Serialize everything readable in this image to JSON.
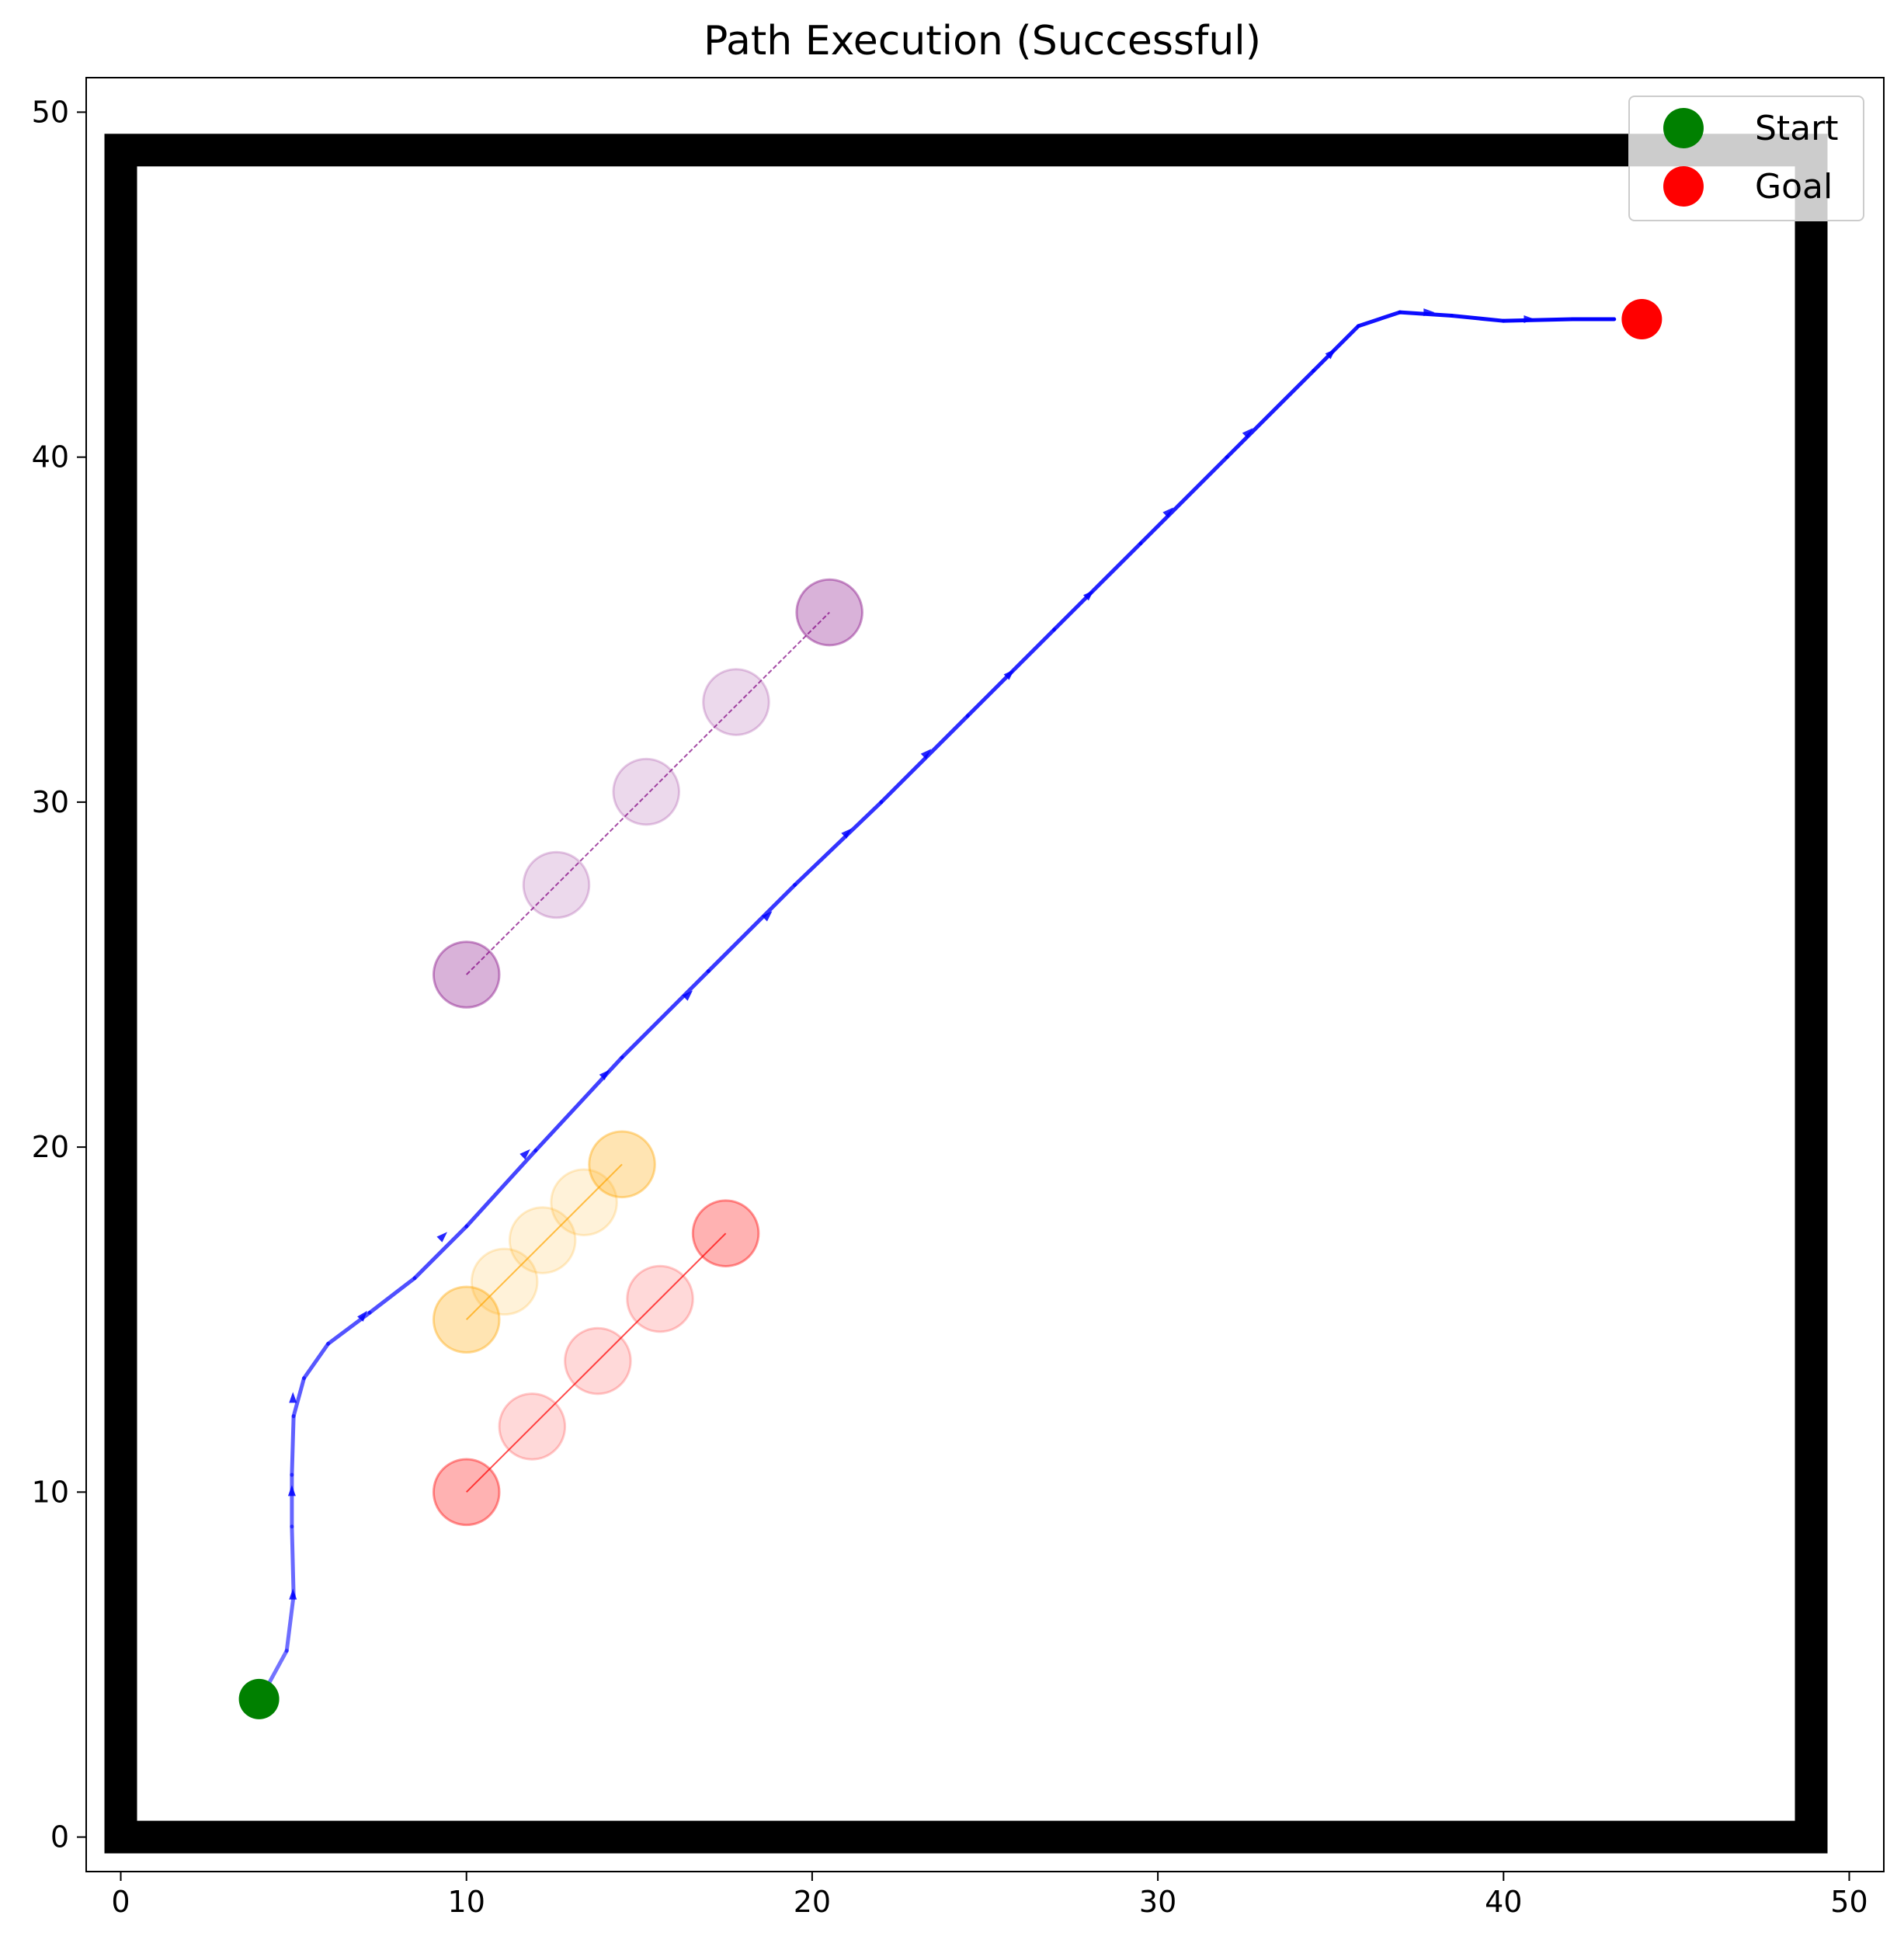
{
  "chart_data": {
    "type": "scatter",
    "title": "Path Execution (Successful)",
    "xlabel": "",
    "ylabel": "",
    "xlim": [
      -1,
      51
    ],
    "ylim": [
      -1,
      51
    ],
    "x_ticks": [
      0,
      10,
      20,
      30,
      40,
      50
    ],
    "y_ticks": [
      0,
      10,
      20,
      30,
      40,
      50
    ],
    "x_tick_labels": [
      "0",
      "10",
      "20",
      "30",
      "40",
      "50"
    ],
    "y_tick_labels": [
      "0",
      "10",
      "20",
      "30",
      "40",
      "50"
    ],
    "grid": false,
    "legend": {
      "position": "top-right",
      "entries": [
        {
          "label": "Start",
          "color": "#008000"
        },
        {
          "label": "Goal",
          "color": "#ff0000"
        }
      ]
    },
    "walls": {
      "color": "#000000",
      "rectangle": {
        "x_min": 0,
        "x_max": 48.9,
        "y_min": 0,
        "y_max": 48.9
      }
    },
    "start": {
      "x": 4,
      "y": 4,
      "color": "#008000"
    },
    "goal": {
      "x": 44,
      "y": 44,
      "color": "#ff0000"
    },
    "path": {
      "color": "#0000ff",
      "points": [
        [
          4.2,
          4.3
        ],
        [
          4.8,
          5.4
        ],
        [
          5.0,
          7.0
        ],
        [
          4.95,
          9.0
        ],
        [
          4.95,
          10.5
        ],
        [
          5.0,
          12.2
        ],
        [
          5.3,
          13.3
        ],
        [
          6.0,
          14.3
        ],
        [
          7.2,
          15.2
        ],
        [
          8.5,
          16.2
        ],
        [
          10.0,
          17.7
        ],
        [
          12.0,
          19.9
        ],
        [
          14.5,
          22.6
        ],
        [
          17.0,
          25.1
        ],
        [
          19.5,
          27.6
        ],
        [
          22.0,
          30.0
        ],
        [
          24.5,
          32.5
        ],
        [
          27.0,
          35.0
        ],
        [
          29.5,
          37.5
        ],
        [
          32.0,
          40.0
        ],
        [
          34.5,
          42.5
        ],
        [
          35.8,
          43.8
        ],
        [
          37.0,
          44.2
        ],
        [
          38.5,
          44.1
        ],
        [
          40.0,
          43.95
        ],
        [
          42.0,
          44.0
        ],
        [
          43.2,
          44.0
        ]
      ],
      "arrows_at": [
        [
          4.98,
          7.0,
          0.0
        ],
        [
          4.95,
          10.0,
          0.0
        ],
        [
          4.98,
          12.7,
          0.0
        ],
        [
          7.0,
          15.1,
          0.7
        ],
        [
          9.3,
          17.4,
          0.8
        ],
        [
          11.7,
          19.8,
          0.8
        ],
        [
          14.0,
          22.1,
          0.8
        ],
        [
          16.4,
          24.4,
          0.8
        ],
        [
          18.7,
          26.7,
          0.8
        ],
        [
          21.0,
          29.1,
          0.8
        ],
        [
          23.3,
          31.4,
          0.8
        ],
        [
          25.7,
          33.7,
          0.8
        ],
        [
          28.0,
          36.0,
          0.8
        ],
        [
          30.3,
          38.4,
          0.8
        ],
        [
          32.6,
          40.7,
          0.8
        ],
        [
          35.0,
          43.0,
          0.8
        ],
        [
          37.8,
          44.2,
          1.57
        ],
        [
          40.7,
          44.0,
          1.57
        ]
      ]
    },
    "obstacles": [
      {
        "name": "purple",
        "color": "#800080",
        "radius": 0.95,
        "trajectory": [
          [
            10.0,
            25.0
          ],
          [
            12.6,
            27.6
          ],
          [
            15.2,
            30.3
          ],
          [
            17.8,
            32.9
          ],
          [
            20.5,
            35.5
          ]
        ]
      },
      {
        "name": "orange",
        "color": "#ffa500",
        "radius": 0.95,
        "trajectory": [
          [
            10.0,
            15.0
          ],
          [
            11.1,
            16.1
          ],
          [
            12.2,
            17.3
          ],
          [
            13.4,
            18.4
          ],
          [
            14.5,
            19.5
          ]
        ]
      },
      {
        "name": "red",
        "color": "#ff0000",
        "radius": 0.95,
        "trajectory": [
          [
            10.0,
            10.0
          ],
          [
            11.9,
            11.9
          ],
          [
            13.8,
            13.8
          ],
          [
            15.6,
            15.6
          ],
          [
            17.5,
            17.5
          ]
        ]
      }
    ]
  }
}
